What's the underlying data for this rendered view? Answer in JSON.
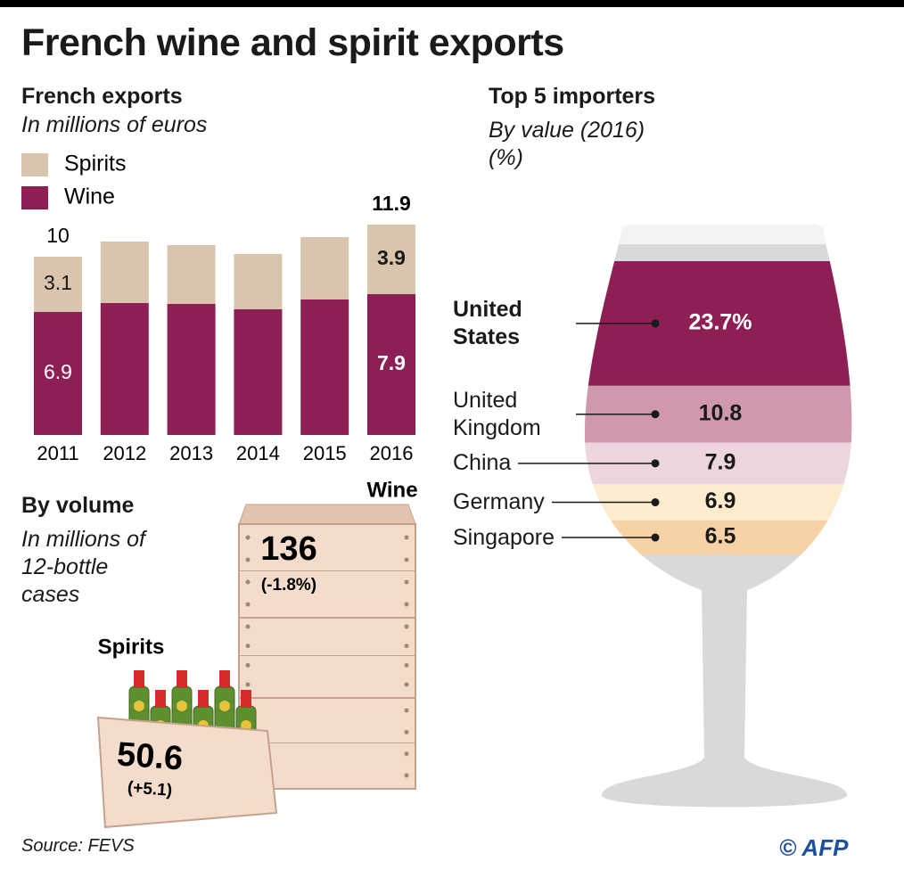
{
  "title": "French wine and spirit exports",
  "source": "Source: FEVS",
  "credit": "© AFP",
  "chart_data": [
    {
      "type": "bar",
      "stacked": true,
      "title": "French exports",
      "subtitle": "In millions of euros",
      "categories": [
        "2011",
        "2012",
        "2013",
        "2014",
        "2015",
        "2016"
      ],
      "series": [
        {
          "name": "Spirits",
          "color": "#d9c4ad",
          "values": [
            3.1,
            3.45,
            3.3,
            3.1,
            3.5,
            3.9
          ],
          "value_labels": [
            "3.1",
            null,
            null,
            null,
            null,
            "3.9"
          ]
        },
        {
          "name": "Wine",
          "color": "#8e1f55",
          "values": [
            6.9,
            7.4,
            7.35,
            7.05,
            7.6,
            7.9
          ],
          "value_labels": [
            "6.9",
            null,
            null,
            null,
            null,
            "7.9"
          ]
        }
      ],
      "totals": [
        10,
        null,
        null,
        null,
        null,
        11.9
      ]
    },
    {
      "type": "pictogram",
      "title": "By volume",
      "subtitle": "In millions of 12-bottle cases",
      "categories": [
        "Wine",
        "Spirits"
      ],
      "values": [
        136,
        50.6
      ],
      "change_labels": [
        "(-1.8%)",
        "(+5.1)"
      ]
    },
    {
      "type": "glass",
      "title": "Top 5 importers",
      "subtitle": "By value (2016) (%)",
      "categories": [
        "United States",
        "United Kingdom",
        "China",
        "Germany",
        "Singapore"
      ],
      "values": [
        23.7,
        10.8,
        7.9,
        6.9,
        6.5
      ],
      "value_labels": [
        "23.7%",
        "10.8",
        "7.9",
        "6.9",
        "6.5"
      ],
      "colors": [
        "#8e1f55",
        "#cf98ae",
        "#ecd5df",
        "#fdeccd",
        "#f7d2a6"
      ]
    }
  ]
}
